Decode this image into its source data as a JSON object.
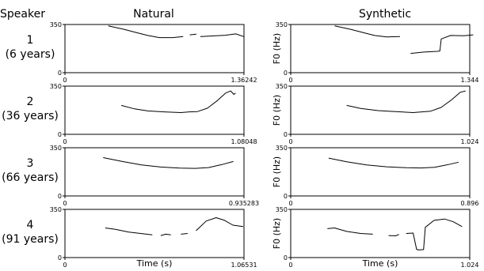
{
  "headers": {
    "speaker": "Speaker",
    "natural": "Natural",
    "synthetic": "Synthetic"
  },
  "speakers": [
    {
      "number": "1",
      "age": "(6 years)"
    },
    {
      "number": "2",
      "age": "(36 years)"
    },
    {
      "number": "3",
      "age": "(66 years)"
    },
    {
      "number": "4",
      "age": "(91 years)"
    }
  ],
  "chart_data": [
    {
      "type": "line",
      "panel": "Speaker 1 Natural",
      "xlabel": "",
      "ylabel": "",
      "xlim": [
        0,
        1.36242
      ],
      "ylim": [
        0,
        350
      ],
      "x_tick_labels": [
        "0",
        "1.36242"
      ],
      "y_tick_labels": [
        "0",
        "350"
      ],
      "segments": [
        {
          "x": [
            0.33,
            0.45,
            0.55,
            0.63,
            0.72,
            0.82,
            0.9
          ],
          "y": [
            340,
            315,
            290,
            270,
            255,
            255,
            262
          ]
        },
        {
          "x": [
            0.95,
            1.0
          ],
          "y": [
            275,
            280
          ]
        },
        {
          "x": [
            1.03,
            1.12,
            1.22,
            1.3,
            1.36
          ],
          "y": [
            262,
            267,
            272,
            282,
            262
          ]
        }
      ]
    },
    {
      "type": "line",
      "panel": "Speaker 1 Synthetic",
      "xlabel": "",
      "ylabel": "F0 (Hz)",
      "xlim": [
        0,
        1.344
      ],
      "ylim": [
        0,
        350
      ],
      "x_tick_labels": [
        "0",
        "1.344"
      ],
      "y_tick_labels": [
        "0",
        "350"
      ],
      "segments": [
        {
          "x": [
            0.33,
            0.45,
            0.55,
            0.63,
            0.72,
            0.82
          ],
          "y": [
            340,
            315,
            290,
            270,
            260,
            262
          ]
        },
        {
          "x": [
            0.9,
            1.0,
            1.1,
            1.12,
            1.13,
            1.2,
            1.3,
            1.37
          ],
          "y": [
            140,
            150,
            155,
            158,
            245,
            270,
            268,
            275
          ]
        }
      ]
    },
    {
      "type": "line",
      "panel": "Speaker 2 Natural",
      "xlabel": "",
      "ylabel": "",
      "xlim": [
        0,
        1.08048
      ],
      "ylim": [
        0,
        350
      ],
      "x_tick_labels": [
        "0",
        "1.08048"
      ],
      "y_tick_labels": [
        "0",
        "350"
      ],
      "segments": [
        {
          "x": [
            0.34,
            0.42,
            0.5,
            0.6,
            0.7,
            0.75,
            0.8,
            0.86,
            0.92,
            0.97,
            1.0,
            1.02,
            1.03
          ],
          "y": [
            210,
            185,
            170,
            163,
            158,
            163,
            165,
            190,
            245,
            300,
            315,
            290,
            300
          ]
        }
      ]
    },
    {
      "type": "line",
      "panel": "Speaker 2 Synthetic",
      "xlabel": "",
      "ylabel": "F0 (Hz)",
      "xlim": [
        0,
        1.024
      ],
      "ylim": [
        0,
        350
      ],
      "x_tick_labels": [
        "0",
        "1.024"
      ],
      "y_tick_labels": [
        "0",
        "350"
      ],
      "segments": [
        {
          "x": [
            0.32,
            0.4,
            0.5,
            0.6,
            0.7,
            0.75,
            0.8,
            0.86,
            0.92,
            0.97,
            1.0
          ],
          "y": [
            210,
            188,
            172,
            165,
            158,
            163,
            168,
            195,
            250,
            305,
            315
          ]
        }
      ]
    },
    {
      "type": "line",
      "panel": "Speaker 3 Natural",
      "xlabel": "",
      "ylabel": "",
      "xlim": [
        0,
        0.935283
      ],
      "ylim": [
        0,
        350
      ],
      "x_tick_labels": [
        "0",
        "0.935283"
      ],
      "y_tick_labels": [
        "0",
        "350"
      ],
      "segments": [
        {
          "x": [
            0.2,
            0.3,
            0.4,
            0.5,
            0.6,
            0.68,
            0.75,
            0.82,
            0.88
          ],
          "y": [
            278,
            250,
            225,
            210,
            202,
            200,
            206,
            228,
            250
          ]
        }
      ]
    },
    {
      "type": "line",
      "panel": "Speaker 3 Synthetic",
      "xlabel": "",
      "ylabel": "F0 (Hz)",
      "xlim": [
        0,
        0.896
      ],
      "ylim": [
        0,
        350
      ],
      "x_tick_labels": [
        "0",
        "0.896"
      ],
      "y_tick_labels": [
        "0",
        "350"
      ],
      "segments": [
        {
          "x": [
            0.19,
            0.28,
            0.38,
            0.48,
            0.58,
            0.65,
            0.72,
            0.78,
            0.84
          ],
          "y": [
            275,
            248,
            225,
            212,
            205,
            203,
            208,
            225,
            245
          ]
        }
      ]
    },
    {
      "type": "line",
      "panel": "Speaker 4 Natural",
      "xlabel": "Time (s)",
      "ylabel": "",
      "xlim": [
        0,
        1.06531
      ],
      "ylim": [
        0,
        350
      ],
      "x_tick_labels": [
        "0",
        "1.06531"
      ],
      "y_tick_labels": [
        "0",
        "350"
      ],
      "segments": [
        {
          "x": [
            0.24,
            0.3,
            0.38,
            0.45,
            0.52
          ],
          "y": [
            215,
            205,
            185,
            175,
            165
          ]
        },
        {
          "x": [
            0.57,
            0.6,
            0.63
          ],
          "y": [
            160,
            170,
            165
          ]
        },
        {
          "x": [
            0.69,
            0.73
          ],
          "y": [
            170,
            175
          ]
        },
        {
          "x": [
            0.78,
            0.84,
            0.9,
            0.95,
            1.0,
            1.06
          ],
          "y": [
            195,
            265,
            290,
            270,
            235,
            225
          ]
        }
      ]
    },
    {
      "type": "line",
      "panel": "Speaker 4 Synthetic",
      "xlabel": "Time (s)",
      "ylabel": "F0 (Hz)",
      "xlim": [
        0,
        1.024
      ],
      "ylim": [
        0,
        350
      ],
      "x_tick_labels": [
        "0",
        "1.024"
      ],
      "y_tick_labels": [
        "0",
        "350"
      ],
      "segments": [
        {
          "x": [
            0.21,
            0.25,
            0.32,
            0.4,
            0.47
          ],
          "y": [
            210,
            215,
            190,
            175,
            170
          ]
        },
        {
          "x": [
            0.56,
            0.6,
            0.62
          ],
          "y": [
            160,
            158,
            168
          ]
        },
        {
          "x": [
            0.66,
            0.7,
            0.72,
            0.73,
            0.76,
            0.77,
            0.82,
            0.88,
            0.93,
            0.98
          ],
          "y": [
            175,
            178,
            60,
            55,
            58,
            220,
            270,
            280,
            260,
            225
          ]
        }
      ]
    }
  ]
}
